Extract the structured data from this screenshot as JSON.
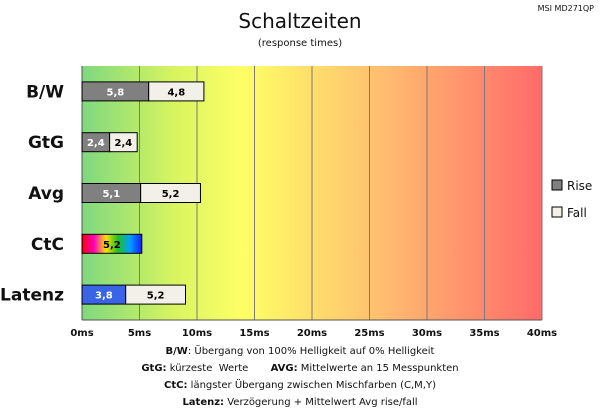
{
  "corner_label": "MSI MD271QP",
  "notes": {
    "bw_key": "B/W",
    "bw_text": ":  Übergang von 100% Helligkeit auf 0% Helligkeit",
    "gtg_key": "GtG:",
    "gtg_text": " kürzeste  Werte       ",
    "avg_key": "AVG:",
    "avg_text": " Mittelwerte  an 15 Messpunkten",
    "ctc_key": "CtC:",
    "ctc_text": " längster Übergang  zwischen Mischfarben  (C,M,Y)",
    "latenz_key": "Latenz:",
    "latenz_text": " Verzögerung  + Mittelwert Avg rise/fall"
  },
  "chart_data": {
    "type": "bar",
    "orientation": "horizontal",
    "stacked": true,
    "title": "Schaltzeiten",
    "subtitle": "(response times)",
    "categories": [
      "B/W",
      "GtG",
      "Avg",
      "CtC",
      "Latenz"
    ],
    "series": [
      {
        "name": "Rise",
        "values": [
          5.8,
          2.4,
          5.1,
          5.2,
          3.8
        ],
        "labels": [
          "5,8",
          "2,4",
          "5,1",
          "5,2",
          "3,8"
        ]
      },
      {
        "name": "Fall",
        "values": [
          4.8,
          2.4,
          5.2,
          null,
          5.2
        ],
        "labels": [
          "4,8",
          "2,4",
          "5,2",
          "",
          "5,2"
        ]
      }
    ],
    "xlim": [
      0,
      40
    ],
    "xticks": [
      0,
      5,
      10,
      15,
      20,
      25,
      30,
      35,
      40
    ],
    "xtick_labels": [
      "0ms",
      "5ms",
      "10ms",
      "15ms",
      "20ms",
      "25ms",
      "30ms",
      "35ms",
      "40ms"
    ],
    "grid": true,
    "legend": "right",
    "background_gradient": [
      "#7fd87f",
      "#e8f85a",
      "#ffff66",
      "#ffb070",
      "#ff6868"
    ],
    "colors": {
      "rise": "#808080",
      "fall": "#f2f0e8",
      "latenz_rise": "#3a64e6",
      "ctc_rainbow": [
        "#ff0000",
        "#ff00ff",
        "#ffff00",
        "#00c000",
        "#00a0ff",
        "#0000ff"
      ]
    }
  }
}
